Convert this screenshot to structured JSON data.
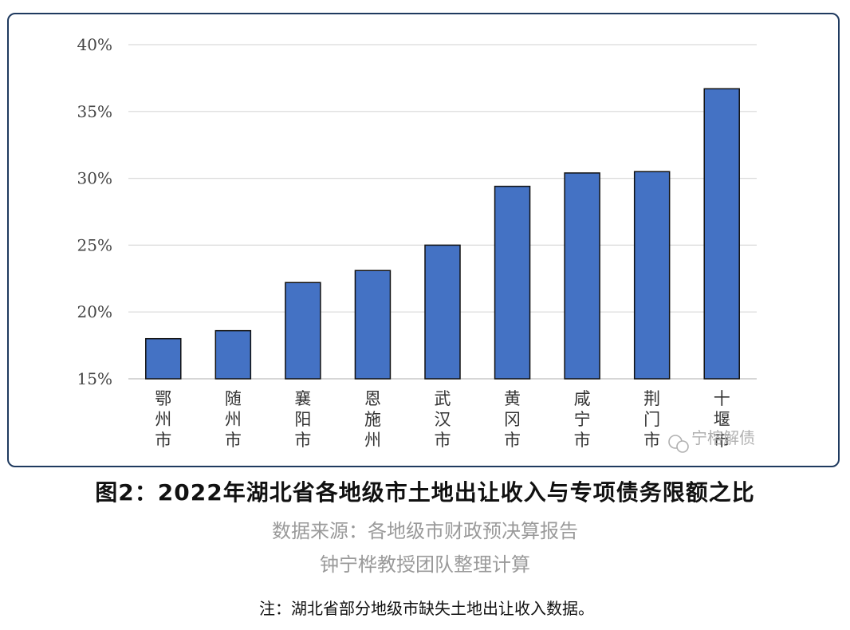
{
  "chart_data": {
    "type": "bar",
    "categories": [
      "鄂州市",
      "随州市",
      "襄阳市",
      "恩施州",
      "武汉市",
      "黄冈市",
      "咸宁市",
      "荆门市",
      "十堰市"
    ],
    "category_label_lines": [
      [
        "鄂",
        "州",
        "市"
      ],
      [
        "随",
        "州",
        "市"
      ],
      [
        "襄",
        "阳",
        "市"
      ],
      [
        "恩",
        "施",
        "州"
      ],
      [
        "武",
        "汉",
        "市"
      ],
      [
        "黄",
        "冈",
        "市"
      ],
      [
        "咸",
        "宁",
        "市"
      ],
      [
        "荆",
        "门",
        "市"
      ],
      [
        "十",
        "堰",
        "市"
      ]
    ],
    "values": [
      18.0,
      18.6,
      22.2,
      23.1,
      25.0,
      29.4,
      30.4,
      30.5,
      36.7
    ],
    "value_unit": "%",
    "ylim": [
      15,
      40
    ],
    "yticks": [
      15,
      20,
      25,
      30,
      35,
      40
    ],
    "ytick_labels": [
      "15%",
      "20%",
      "25%",
      "30%",
      "35%",
      "40%"
    ],
    "grid": true,
    "legend": "none",
    "bar_color": "#4472c4",
    "title": "",
    "xlabel": "",
    "ylabel": ""
  },
  "watermark": "宁榕解债",
  "caption": {
    "title": "图2：2022年湖北省各地级市土地出让收入与专项债务限额之比",
    "source": "数据来源：各地级市财政预决算报告",
    "author": "钟宁桦教授团队整理计算",
    "note": "注：湖北省部分地级市缺失土地出让收入数据。"
  }
}
